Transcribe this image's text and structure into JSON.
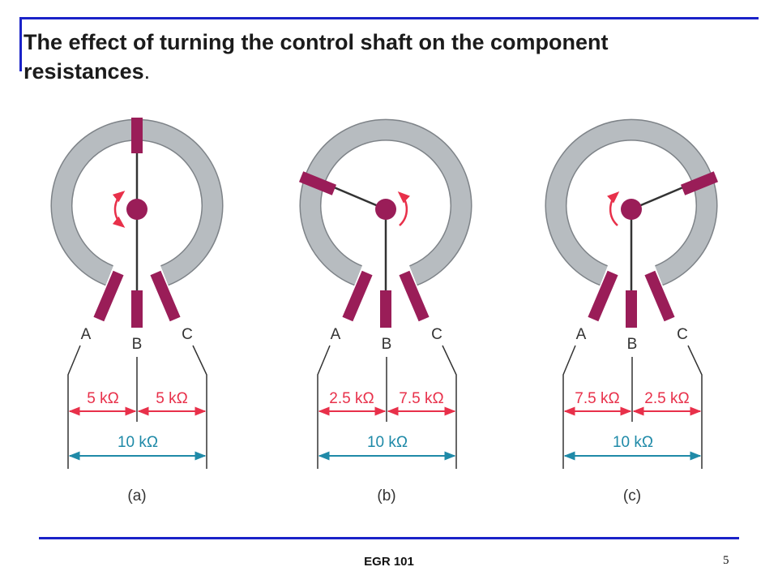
{
  "slide": {
    "title_line1": "The effect of turning the control shaft on the component",
    "title_line2": "resistances",
    "title_end": ".",
    "footer": "EGR 101",
    "page_number": "5"
  },
  "colors": {
    "rule": "#1a22c8",
    "ring": "#b7bcc0",
    "ring_edge": "#7e8388",
    "terminal": "#9a1d58",
    "red_dim": "#e8304a",
    "teal_dim": "#1f8aa8",
    "lead": "#333333"
  },
  "diagrams": [
    {
      "label": "(a)",
      "wiper_direction": "up",
      "rotation_arrow": "both",
      "terminals": {
        "a": "A",
        "b": "B",
        "c": "C"
      },
      "left_resistance": "5 kΩ",
      "right_resistance": "5 kΩ",
      "total_resistance": "10 kΩ"
    },
    {
      "label": "(b)",
      "wiper_direction": "upper-left",
      "rotation_arrow": "clockwise",
      "terminals": {
        "a": "A",
        "b": "B",
        "c": "C"
      },
      "left_resistance": "2.5 kΩ",
      "right_resistance": "7.5 kΩ",
      "total_resistance": "10 kΩ"
    },
    {
      "label": "(c)",
      "wiper_direction": "upper-right",
      "rotation_arrow": "counterclockwise",
      "terminals": {
        "a": "A",
        "b": "B",
        "c": "C"
      },
      "left_resistance": "7.5 kΩ",
      "right_resistance": "2.5 kΩ",
      "total_resistance": "10 kΩ"
    }
  ]
}
